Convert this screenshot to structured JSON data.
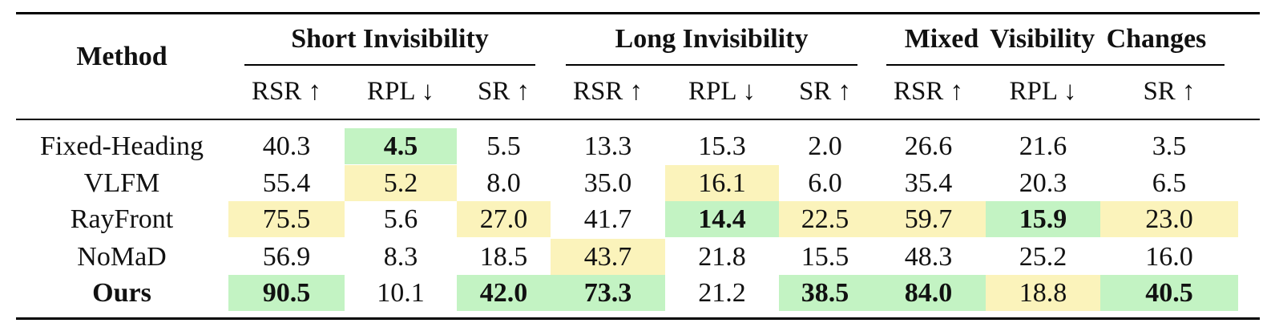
{
  "table": {
    "method_header": "Method",
    "groups": [
      {
        "name": "Short Invisibility",
        "metrics": [
          "RSR ↑",
          "RPL ↓",
          "SR ↑"
        ]
      },
      {
        "name": "Long Invisibility",
        "metrics": [
          "RSR ↑",
          "RPL ↓",
          "SR ↑"
        ]
      },
      {
        "name": "Mixed Visibility Changes",
        "metrics": [
          "RSR ↑",
          "RPL ↓",
          "SR ↑"
        ]
      }
    ],
    "rows": [
      {
        "method": "Fixed-Heading",
        "bold_method": false,
        "cells": [
          {
            "v": "40.3",
            "hl": "",
            "b": false
          },
          {
            "v": "4.5",
            "hl": "green",
            "b": true
          },
          {
            "v": "5.5",
            "hl": "",
            "b": false
          },
          {
            "v": "13.3",
            "hl": "",
            "b": false
          },
          {
            "v": "15.3",
            "hl": "",
            "b": false
          },
          {
            "v": "2.0",
            "hl": "",
            "b": false
          },
          {
            "v": "26.6",
            "hl": "",
            "b": false
          },
          {
            "v": "21.6",
            "hl": "",
            "b": false
          },
          {
            "v": "3.5",
            "hl": "",
            "b": false
          }
        ]
      },
      {
        "method": "VLFM",
        "bold_method": false,
        "cells": [
          {
            "v": "55.4",
            "hl": "",
            "b": false
          },
          {
            "v": "5.2",
            "hl": "yellow",
            "b": false
          },
          {
            "v": "8.0",
            "hl": "",
            "b": false
          },
          {
            "v": "35.0",
            "hl": "",
            "b": false
          },
          {
            "v": "16.1",
            "hl": "yellow",
            "b": false
          },
          {
            "v": "6.0",
            "hl": "",
            "b": false
          },
          {
            "v": "35.4",
            "hl": "",
            "b": false
          },
          {
            "v": "20.3",
            "hl": "",
            "b": false
          },
          {
            "v": "6.5",
            "hl": "",
            "b": false
          }
        ]
      },
      {
        "method": "RayFront",
        "bold_method": false,
        "cells": [
          {
            "v": "75.5",
            "hl": "yellow",
            "b": false
          },
          {
            "v": "5.6",
            "hl": "",
            "b": false
          },
          {
            "v": "27.0",
            "hl": "yellow",
            "b": false
          },
          {
            "v": "41.7",
            "hl": "",
            "b": false
          },
          {
            "v": "14.4",
            "hl": "green",
            "b": true
          },
          {
            "v": "22.5",
            "hl": "yellow",
            "b": false
          },
          {
            "v": "59.7",
            "hl": "yellow",
            "b": false
          },
          {
            "v": "15.9",
            "hl": "green",
            "b": true
          },
          {
            "v": "23.0",
            "hl": "yellow",
            "b": false
          }
        ]
      },
      {
        "method": "NoMaD",
        "bold_method": false,
        "cells": [
          {
            "v": "56.9",
            "hl": "",
            "b": false
          },
          {
            "v": "8.3",
            "hl": "",
            "b": false
          },
          {
            "v": "18.5",
            "hl": "",
            "b": false
          },
          {
            "v": "43.7",
            "hl": "yellow",
            "b": false
          },
          {
            "v": "21.8",
            "hl": "",
            "b": false
          },
          {
            "v": "15.5",
            "hl": "",
            "b": false
          },
          {
            "v": "48.3",
            "hl": "",
            "b": false
          },
          {
            "v": "25.2",
            "hl": "",
            "b": false
          },
          {
            "v": "16.0",
            "hl": "",
            "b": false
          }
        ]
      },
      {
        "method": "Ours",
        "bold_method": true,
        "cells": [
          {
            "v": "90.5",
            "hl": "green",
            "b": true
          },
          {
            "v": "10.1",
            "hl": "",
            "b": false
          },
          {
            "v": "42.0",
            "hl": "green",
            "b": true
          },
          {
            "v": "73.3",
            "hl": "green",
            "b": true
          },
          {
            "v": "21.2",
            "hl": "",
            "b": false
          },
          {
            "v": "38.5",
            "hl": "green",
            "b": true
          },
          {
            "v": "84.0",
            "hl": "green",
            "b": true
          },
          {
            "v": "18.8",
            "hl": "yellow",
            "b": false
          },
          {
            "v": "40.5",
            "hl": "green",
            "b": true
          }
        ]
      }
    ]
  }
}
